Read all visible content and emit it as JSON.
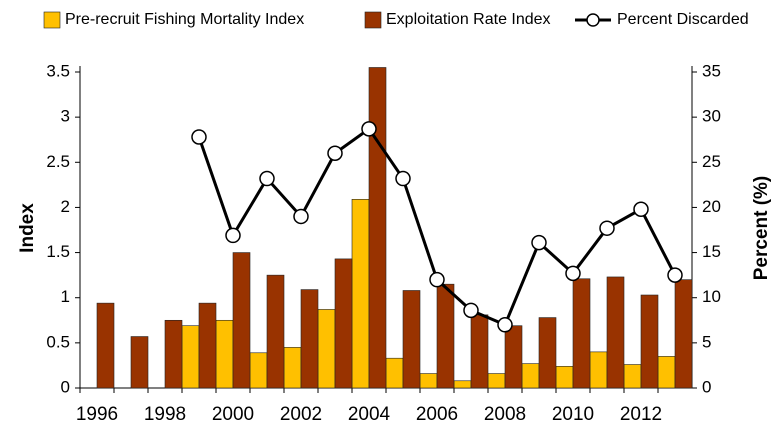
{
  "chart_data": {
    "type": "bar",
    "categories": [
      "1996",
      null,
      "1998",
      null,
      "2000",
      null,
      "2002",
      null,
      "2004",
      null,
      "2006",
      null,
      "2008",
      null,
      "2010",
      null,
      "2012",
      null
    ],
    "series": [
      {
        "name": "Pre-recruit Fishing Mortality Index",
        "color": "#ffc000",
        "values": [
          null,
          null,
          null,
          0.69,
          0.75,
          0.39,
          0.45,
          0.87,
          2.09,
          0.33,
          0.16,
          0.08,
          0.16,
          0.27,
          0.24,
          0.4,
          0.26,
          0.35
        ]
      },
      {
        "name": "Exploitation Rate Index",
        "color": "#993300",
        "values": [
          0.94,
          0.57,
          0.75,
          0.94,
          1.5,
          1.25,
          1.09,
          1.43,
          3.55,
          1.08,
          1.15,
          0.81,
          0.69,
          0.78,
          1.21,
          1.23,
          1.03,
          1.2
        ]
      },
      {
        "name": "Percent Discarded",
        "color": "#000000",
        "type": "line",
        "axis": "y2",
        "values": [
          null,
          null,
          null,
          27.8,
          16.9,
          23.2,
          19.0,
          26.0,
          28.7,
          23.2,
          12.0,
          8.6,
          7.0,
          16.1,
          12.7,
          17.7,
          19.8,
          12.5
        ]
      }
    ],
    "y_label": "Index",
    "y2_label": "Percent (%)",
    "ylim": [
      0,
      3.5
    ],
    "yticks": [
      0,
      0.5,
      1,
      1.5,
      2,
      2.5,
      3,
      3.5
    ],
    "y2lim": [
      0,
      35
    ],
    "y2ticks": [
      0,
      5,
      10,
      15,
      20,
      25,
      30,
      35
    ],
    "grid": false,
    "legend": "top"
  }
}
